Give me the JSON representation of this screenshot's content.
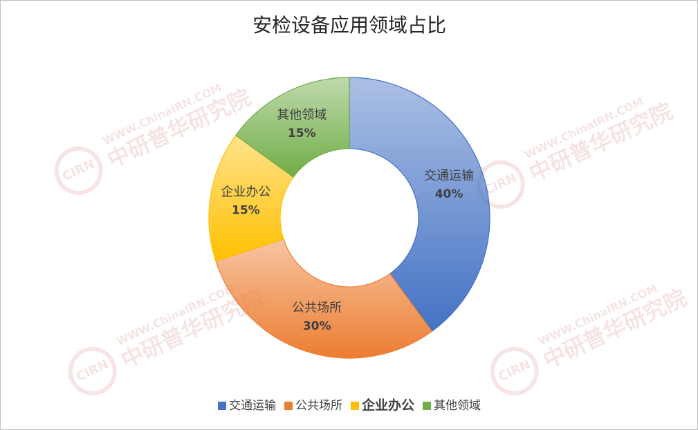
{
  "chart_data": {
    "type": "donut",
    "title": "安检设备应用领域占比",
    "categories": [
      "交通运输",
      "公共场所",
      "企业办公",
      "其他领域"
    ],
    "values": [
      40,
      30,
      15,
      15
    ],
    "value_labels": [
      "40%",
      "30%",
      "15%",
      "15%"
    ],
    "colors": [
      "#4472c4",
      "#ed7d31",
      "#ffc000",
      "#70ad47"
    ],
    "legend": "bottom"
  },
  "watermark": {
    "url": "WWW.ChinaIRN.COM",
    "name": "中研普华研究院",
    "logo": "CIRN"
  }
}
